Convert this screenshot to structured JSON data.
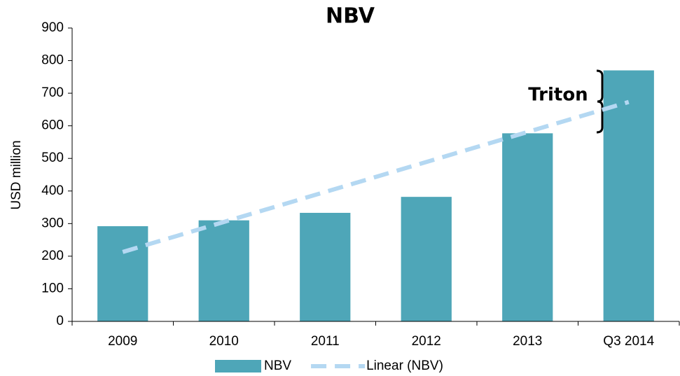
{
  "chart_data": {
    "type": "bar",
    "title": "NBV",
    "y_label": "USD million",
    "categories": [
      "2009",
      "2010",
      "2011",
      "2012",
      "2013",
      "Q3 2014"
    ],
    "series": [
      {
        "name": "NBV",
        "type": "bar",
        "color": "#4ea6b8",
        "values": [
          292,
          310,
          333,
          382,
          577,
          770
        ]
      },
      {
        "name": "Linear (NBV)",
        "type": "line",
        "color": "#b4d8f2",
        "dashed": true,
        "values": [
          213,
          305,
          397,
          489,
          581,
          673
        ]
      }
    ],
    "ylim": [
      0,
      900
    ],
    "yticks": [
      0,
      100,
      200,
      300,
      400,
      500,
      600,
      700,
      800,
      900
    ],
    "annotation": "Triton",
    "legend": "bottom"
  }
}
